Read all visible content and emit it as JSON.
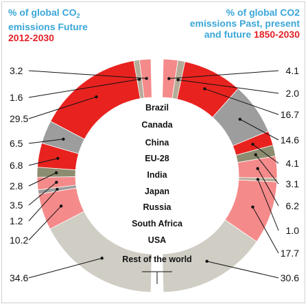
{
  "titles": {
    "left_line1": "% of global CO",
    "left_sub": "2",
    "left_line2": "emissions Future",
    "left_years": "2012-2030",
    "right_line1": "% of global CO2",
    "right_line2": "emissions Past, present",
    "right_line3": "and future",
    "right_years": "1850-2030"
  },
  "colors": {
    "red": "#e8231f",
    "pink": "#f58a8a",
    "gray": "#9d9d9d",
    "olive": "#8c8c70",
    "light_gray": "#cfcdc4",
    "tan": "#b5ab98"
  },
  "chart_data": [
    {
      "type": "pie",
      "title": "% of global CO2 emissions Future 2012-2030",
      "categories": [
        "Brazil",
        "Canada",
        "China",
        "EU-28",
        "India",
        "Japan",
        "Russia",
        "South Africa",
        "USA",
        "Rest of the world"
      ],
      "values": [
        3.2,
        1.6,
        29.5,
        6.5,
        6.8,
        2.8,
        3.5,
        1.2,
        10.2,
        34.6
      ],
      "value_labels": [
        "3.2",
        "1.6",
        "29.5",
        "6.5",
        "6.8",
        "2.8",
        "3.5",
        "1.2",
        "10.2",
        "34.6"
      ],
      "colors": [
        "#f58a8a",
        "#b5ab98",
        "#e8231f",
        "#9d9d9d",
        "#e8231f",
        "#8c8c70",
        "#f58a8a",
        "#9d9d9d",
        "#f58a8a",
        "#cfcdc4"
      ]
    },
    {
      "type": "pie",
      "title": "% of global CO2 emissions Past, present and future 1850-2030",
      "categories": [
        "Brazil",
        "Canada",
        "China",
        "EU-28",
        "India",
        "Japan",
        "Russia",
        "South Africa",
        "USA",
        "Rest of the world"
      ],
      "values": [
        4.1,
        2.0,
        16.7,
        14.6,
        4.1,
        3.1,
        6.2,
        1.0,
        17.7,
        30.6
      ],
      "value_labels": [
        "4.1",
        "2.0",
        "16.7",
        "14.6",
        "4.1",
        "3.1",
        "6.2",
        "1.0",
        "17.7",
        "30.6"
      ],
      "colors": [
        "#f58a8a",
        "#b5ab98",
        "#e8231f",
        "#9d9d9d",
        "#e8231f",
        "#8c8c70",
        "#f58a8a",
        "#b5ab98",
        "#f58a8a",
        "#cfcdc4"
      ]
    }
  ]
}
